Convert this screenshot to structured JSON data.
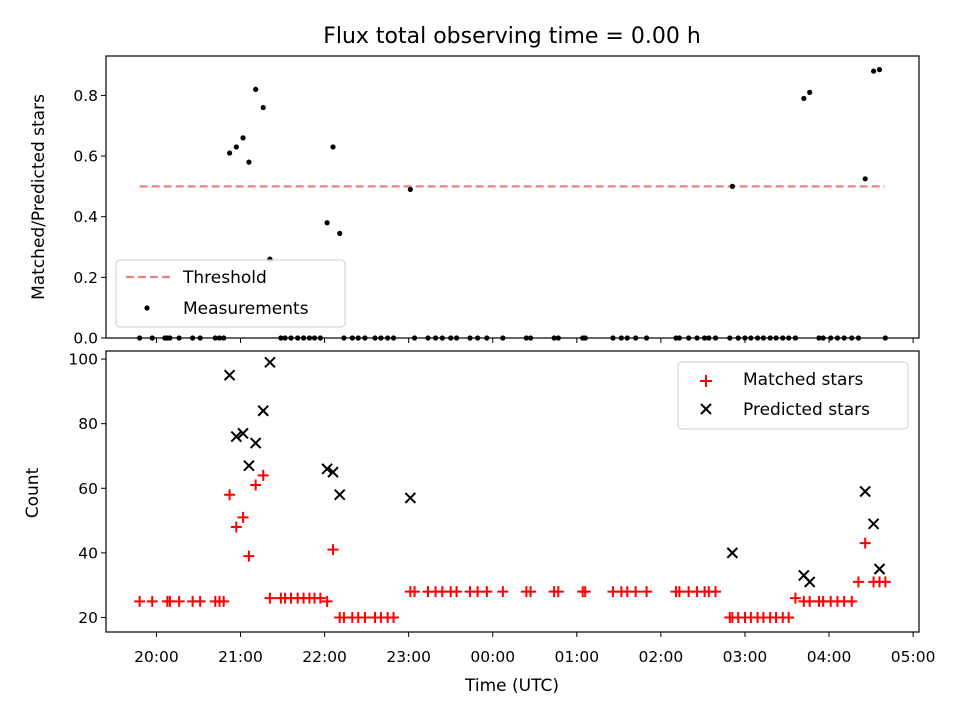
{
  "figure_title": "Flux total observing time = 0.00 h",
  "chart_data": [
    {
      "type": "scatter",
      "title": "Flux total observing time = 0.00 h",
      "xlabel": "",
      "ylabel": "Matched/Predicted stars",
      "ylim": [
        0,
        0.93
      ],
      "yticks": [
        0.0,
        0.2,
        0.4,
        0.6,
        0.8
      ],
      "ytick_labels": [
        "0.0",
        "0.2",
        "0.4",
        "0.6",
        "0.8"
      ],
      "x_unit": "hours since 20:00 UTC",
      "xlim": [
        -0.6,
        9.07
      ],
      "legend_position": "lower-left",
      "threshold": {
        "name": "Threshold",
        "value": 0.5,
        "x_range": [
          -0.2,
          8.66
        ],
        "color": "#f08080"
      },
      "series": [
        {
          "name": "Measurements",
          "color": "#000000",
          "x": [
            -0.2,
            -0.05,
            0.1,
            0.13,
            0.16,
            0.27,
            0.43,
            0.52,
            0.7,
            0.75,
            0.8,
            0.87,
            0.95,
            1.03,
            1.1,
            1.18,
            1.27,
            1.35,
            1.48,
            1.53,
            1.6,
            1.68,
            1.75,
            1.82,
            1.88,
            1.95,
            2.03,
            2.1,
            2.18,
            2.23,
            2.33,
            2.4,
            2.48,
            2.6,
            2.67,
            2.75,
            2.82,
            3.02,
            3.07,
            3.23,
            3.32,
            3.4,
            3.5,
            3.57,
            3.73,
            3.82,
            3.93,
            4.12,
            4.4,
            4.45,
            4.73,
            4.78,
            5.07,
            5.1,
            5.43,
            5.53,
            5.6,
            5.7,
            5.83,
            6.18,
            6.22,
            6.33,
            6.43,
            6.52,
            6.57,
            6.65,
            6.82,
            6.85,
            6.92,
            7.0,
            7.07,
            7.15,
            7.22,
            7.3,
            7.37,
            7.45,
            7.52,
            7.6,
            7.7,
            7.77,
            7.88,
            7.93,
            8.02,
            8.1,
            8.18,
            8.27,
            8.35,
            8.43,
            8.53,
            8.6,
            8.67
          ],
          "y": [
            0,
            0,
            0,
            0,
            0,
            0,
            0,
            0,
            0,
            0,
            0,
            0.61,
            0.63,
            0.66,
            0.58,
            0.82,
            0.76,
            0.26,
            0,
            0,
            0,
            0,
            0,
            0,
            0,
            0,
            0.38,
            0.63,
            0.345,
            0,
            0,
            0,
            0,
            0,
            0,
            0,
            0,
            0.49,
            0,
            0,
            0,
            0,
            0,
            0,
            0,
            0,
            0,
            0,
            0,
            0,
            0,
            0,
            0,
            0,
            0,
            0,
            0,
            0,
            0,
            0,
            0,
            0,
            0,
            0,
            0,
            0,
            0,
            0.5,
            0,
            0,
            0,
            0,
            0,
            0,
            0,
            0,
            0,
            0,
            0.79,
            0.81,
            0,
            0,
            0,
            0,
            0,
            0,
            0,
            0.525,
            0.88,
            0.885,
            0
          ]
        }
      ]
    },
    {
      "type": "scatter",
      "title": "",
      "xlabel": "Time (UTC)",
      "ylabel": "Count",
      "ylim": [
        15.5,
        102.5
      ],
      "yticks": [
        20,
        40,
        60,
        80,
        100
      ],
      "ytick_labels": [
        "20",
        "40",
        "60",
        "80",
        "100"
      ],
      "x_unit": "hours since 20:00 UTC",
      "xlim": [
        -0.6,
        9.07
      ],
      "xticks": [
        0,
        1,
        2,
        3,
        4,
        5,
        6,
        7,
        8,
        9
      ],
      "xtick_labels": [
        "20:00",
        "21:00",
        "22:00",
        "23:00",
        "00:00",
        "01:00",
        "02:00",
        "03:00",
        "04:00",
        "05:00"
      ],
      "legend_position": "top-right",
      "series": [
        {
          "name": "Matched stars",
          "marker": "plus",
          "color": "#ff0000",
          "x": [
            -0.2,
            -0.05,
            0.13,
            0.16,
            0.27,
            0.43,
            0.52,
            0.7,
            0.75,
            0.8,
            0.87,
            0.95,
            1.03,
            1.1,
            1.18,
            1.27,
            1.35,
            1.48,
            1.53,
            1.6,
            1.68,
            1.75,
            1.82,
            1.88,
            1.95,
            2.03,
            2.1,
            2.18,
            2.23,
            2.33,
            2.4,
            2.48,
            2.6,
            2.67,
            2.75,
            2.82,
            3.02,
            3.07,
            3.23,
            3.32,
            3.4,
            3.5,
            3.57,
            3.73,
            3.82,
            3.93,
            4.12,
            4.4,
            4.45,
            4.73,
            4.78,
            5.07,
            5.1,
            5.43,
            5.53,
            5.6,
            5.7,
            5.83,
            6.18,
            6.22,
            6.33,
            6.43,
            6.52,
            6.57,
            6.65,
            6.82,
            6.85,
            6.92,
            7.0,
            7.07,
            7.15,
            7.22,
            7.3,
            7.37,
            7.45,
            7.52,
            7.6,
            7.7,
            7.77,
            7.88,
            7.93,
            8.02,
            8.1,
            8.18,
            8.27,
            8.35,
            8.43,
            8.53,
            8.6,
            8.67
          ],
          "y": [
            25,
            25,
            25,
            25,
            25,
            25,
            25,
            25,
            25,
            25,
            58,
            48,
            51,
            39,
            61,
            64,
            26,
            26,
            26,
            26,
            26,
            26,
            26,
            26,
            26,
            25,
            41,
            20,
            20,
            20,
            20,
            20,
            20,
            20,
            20,
            20,
            28,
            28,
            28,
            28,
            28,
            28,
            28,
            28,
            28,
            28,
            28,
            28,
            28,
            28,
            28,
            28,
            28,
            28,
            28,
            28,
            28,
            28,
            28,
            28,
            28,
            28,
            28,
            28,
            28,
            20,
            20,
            20,
            20,
            20,
            20,
            20,
            20,
            20,
            20,
            20,
            26,
            25,
            25,
            25,
            25,
            25,
            25,
            25,
            25,
            31,
            43,
            31,
            31,
            31
          ]
        },
        {
          "name": "Predicted stars",
          "marker": "x",
          "color": "#000000",
          "x": [
            0.87,
            0.95,
            1.03,
            1.1,
            1.18,
            1.27,
            1.35,
            2.03,
            2.1,
            2.18,
            3.02,
            6.85,
            7.7,
            7.77,
            8.43,
            8.53,
            8.6
          ],
          "y": [
            95,
            76,
            77,
            67,
            74,
            84,
            99,
            66,
            65,
            58,
            57,
            40,
            33,
            31,
            59,
            49,
            35
          ]
        }
      ]
    }
  ]
}
